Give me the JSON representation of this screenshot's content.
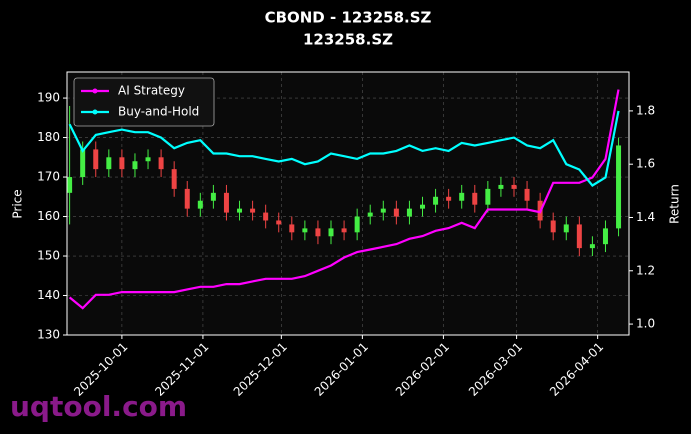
{
  "chart_data": {
    "type": "candlestick",
    "title": "CBOND - 123258.SZ",
    "subtitle": "123258.SZ",
    "ylabel": "Price",
    "y2label": "Return",
    "watermark": "uqtool.com",
    "x": [
      "2025-09-11",
      "2025-09-16",
      "2025-09-21",
      "2025-09-26",
      "2025-10-01",
      "2025-10-06",
      "2025-10-11",
      "2025-10-16",
      "2025-10-21",
      "2025-10-26",
      "2025-10-31",
      "2025-11-05",
      "2025-11-10",
      "2025-11-15",
      "2025-11-20",
      "2025-11-25",
      "2025-11-30",
      "2025-12-05",
      "2025-12-10",
      "2025-12-15",
      "2025-12-20",
      "2025-12-25",
      "2025-12-30",
      "2026-01-04",
      "2026-01-09",
      "2026-01-14",
      "2026-01-19",
      "2026-01-24",
      "2026-01-29",
      "2026-02-03",
      "2026-02-08",
      "2026-02-13",
      "2026-02-18",
      "2026-02-23",
      "2026-02-28",
      "2026-03-05",
      "2026-03-10",
      "2026-03-15",
      "2026-03-20",
      "2026-03-25",
      "2026-03-30",
      "2026-04-04",
      "2026-04-09"
    ],
    "open": [
      166,
      170,
      177,
      172,
      175,
      172,
      174,
      175,
      172,
      167,
      162,
      164,
      166,
      161,
      162,
      161,
      159,
      158,
      156,
      157,
      155,
      157,
      156,
      160,
      161,
      162,
      160,
      162,
      163,
      165,
      164,
      166,
      163,
      167,
      168,
      167,
      164,
      159,
      156,
      158,
      152,
      153,
      157
    ],
    "high": [
      188,
      179,
      179,
      177,
      177,
      176,
      177,
      177,
      174,
      169,
      166,
      168,
      168,
      164,
      164,
      163,
      161,
      160,
      159,
      159,
      159,
      159,
      162,
      163,
      164,
      164,
      164,
      165,
      167,
      167,
      168,
      168,
      169,
      170,
      170,
      169,
      166,
      161,
      160,
      160,
      155,
      159,
      180
    ],
    "low": [
      158,
      168,
      170,
      170,
      170,
      170,
      172,
      170,
      165,
      160,
      160,
      162,
      159,
      159,
      159,
      157,
      156,
      154,
      154,
      153,
      153,
      154,
      154,
      158,
      159,
      158,
      158,
      160,
      161,
      162,
      162,
      161,
      161,
      165,
      165,
      162,
      157,
      154,
      154,
      150,
      150,
      151,
      155
    ],
    "close": [
      170,
      177,
      172,
      175,
      172,
      174,
      175,
      172,
      167,
      162,
      164,
      166,
      161,
      162,
      161,
      159,
      158,
      156,
      157,
      155,
      157,
      156,
      160,
      161,
      162,
      160,
      162,
      163,
      165,
      164,
      166,
      163,
      167,
      168,
      167,
      164,
      159,
      156,
      158,
      152,
      153,
      157,
      178
    ],
    "up_color": "#44ee44",
    "down_color": "#ee4444",
    "series": [
      {
        "name": "AI Strategy",
        "color": "#ff00ff",
        "axis": "y2",
        "values": [
          1.1,
          1.06,
          1.11,
          1.11,
          1.12,
          1.12,
          1.12,
          1.12,
          1.12,
          1.13,
          1.14,
          1.14,
          1.15,
          1.15,
          1.16,
          1.17,
          1.17,
          1.17,
          1.18,
          1.2,
          1.22,
          1.25,
          1.27,
          1.28,
          1.29,
          1.3,
          1.32,
          1.33,
          1.35,
          1.36,
          1.38,
          1.36,
          1.43,
          1.43,
          1.43,
          1.43,
          1.42,
          1.53,
          1.53,
          1.53,
          1.55,
          1.62,
          1.88
        ]
      },
      {
        "name": "Buy-and-Hold",
        "color": "#00ffff",
        "axis": "y2",
        "values": [
          1.75,
          1.65,
          1.71,
          1.72,
          1.73,
          1.72,
          1.72,
          1.7,
          1.66,
          1.68,
          1.69,
          1.64,
          1.64,
          1.63,
          1.63,
          1.62,
          1.61,
          1.62,
          1.6,
          1.61,
          1.64,
          1.63,
          1.62,
          1.64,
          1.64,
          1.65,
          1.67,
          1.65,
          1.66,
          1.65,
          1.68,
          1.67,
          1.68,
          1.69,
          1.7,
          1.67,
          1.66,
          1.69,
          1.6,
          1.58,
          1.52,
          1.55,
          1.8
        ]
      }
    ],
    "xlim": [
      "2025-09-10",
      "2026-04-13"
    ],
    "xticks": [
      "2025-10-01",
      "2025-11-01",
      "2025-12-01",
      "2026-01-01",
      "2026-02-01",
      "2026-03-01",
      "2026-04-01"
    ],
    "ylim": [
      130,
      196.6
    ],
    "yticks": [
      130,
      140,
      150,
      160,
      170,
      180,
      190
    ],
    "y2lim": [
      0.959,
      1.946
    ],
    "y2ticks": [
      {
        "value": 1,
        "label": "1.0"
      },
      1.2,
      1.4,
      1.6,
      1.8
    ],
    "grid": true,
    "legend": "upper left"
  }
}
